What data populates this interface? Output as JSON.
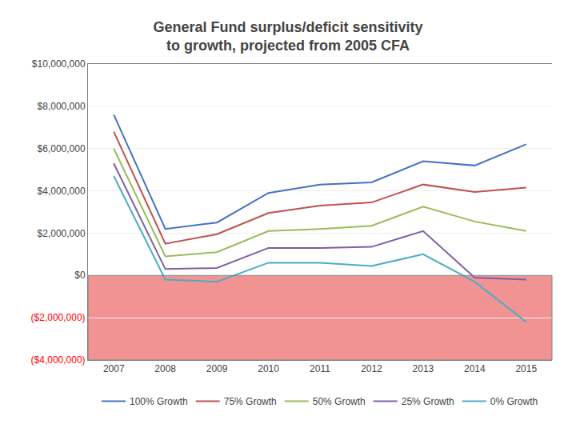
{
  "chart_data": {
    "type": "line",
    "title": "General Fund surplus/deficit sensitivity\nto growth, projected from 2005 CFA",
    "x": [
      2007,
      2008,
      2009,
      2010,
      2011,
      2012,
      2013,
      2014,
      2015
    ],
    "series": [
      {
        "name": "100% Growth",
        "color": "#4472C4",
        "values": [
          7600000,
          2200000,
          2500000,
          3900000,
          4300000,
          4400000,
          5400000,
          5200000,
          6200000
        ]
      },
      {
        "name": "75% Growth",
        "color": "#C0504D",
        "values": [
          6800000,
          1500000,
          1950000,
          2950000,
          3300000,
          3450000,
          4300000,
          3950000,
          4150000
        ]
      },
      {
        "name": "50% Growth",
        "color": "#9BBB59",
        "values": [
          6000000,
          900000,
          1100000,
          2100000,
          2200000,
          2350000,
          3250000,
          2550000,
          2100000
        ]
      },
      {
        "name": "25% Growth",
        "color": "#7F5FA5",
        "values": [
          5300000,
          300000,
          350000,
          1300000,
          1300000,
          1350000,
          2100000,
          -100000,
          -200000
        ]
      },
      {
        "name": "0% Growth",
        "color": "#4BACC6",
        "values": [
          4700000,
          -200000,
          -300000,
          600000,
          600000,
          450000,
          1000000,
          -300000,
          -2200000
        ]
      }
    ],
    "xlim": [
      2006.5,
      2015.5
    ],
    "xticks": [
      2007,
      2008,
      2009,
      2010,
      2011,
      2012,
      2013,
      2014,
      2015
    ],
    "ylim": [
      -4000000,
      10000000
    ],
    "yticks": [
      {
        "value": -4000000,
        "label": "($4,000,000)"
      },
      {
        "value": -2000000,
        "label": "($2,000,000)"
      },
      {
        "value": 0,
        "label": "$0"
      },
      {
        "value": 2000000,
        "label": "$2,000,000"
      },
      {
        "value": 4000000,
        "label": "$4,000,000"
      },
      {
        "value": 6000000,
        "label": "$6,000,000"
      },
      {
        "value": 8000000,
        "label": "$8,000,000"
      },
      {
        "value": 10000000,
        "label": "$10,000,000"
      }
    ],
    "grid": true,
    "legend": "bottom"
  }
}
